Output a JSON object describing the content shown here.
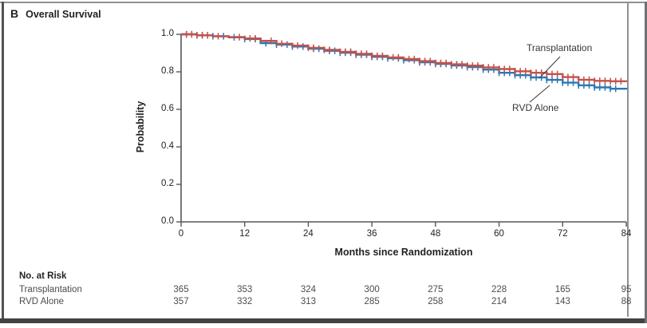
{
  "panel": {
    "letter": "B",
    "title": "Overall Survival"
  },
  "colors": {
    "transplantation": "#c2524b",
    "rvd_alone": "#2878b8",
    "axis": "#55575a",
    "frame_dark": "#414243",
    "frame_light": "#8e9091"
  },
  "chart_data": {
    "type": "line",
    "subtype": "kaplan-meier-step",
    "title": "Overall Survival",
    "xlabel": "Months since Randomization",
    "ylabel": "Probability",
    "xlim": [
      0,
      84
    ],
    "ylim": [
      0.0,
      1.0
    ],
    "grid": false,
    "xticks": [
      0,
      12,
      24,
      36,
      48,
      60,
      72,
      84
    ],
    "ytick_labels": [
      "1.0",
      "0.8",
      "0.6",
      "0.4",
      "0.2",
      "0.0"
    ],
    "ytick_values": [
      1.0,
      0.8,
      0.6,
      0.4,
      0.2,
      0.0
    ],
    "series": [
      {
        "name": "Transplantation",
        "color": "#c2524b",
        "x": [
          0,
          3,
          6,
          9,
          12,
          15,
          18,
          21,
          24,
          27,
          30,
          33,
          36,
          39,
          42,
          45,
          48,
          51,
          54,
          57,
          60,
          63,
          66,
          69,
          72,
          75,
          78,
          81,
          84
        ],
        "y": [
          1.0,
          0.995,
          0.99,
          0.985,
          0.978,
          0.965,
          0.95,
          0.94,
          0.928,
          0.917,
          0.907,
          0.896,
          0.885,
          0.877,
          0.868,
          0.857,
          0.847,
          0.84,
          0.833,
          0.824,
          0.815,
          0.803,
          0.795,
          0.788,
          0.772,
          0.758,
          0.752,
          0.75,
          0.745
        ],
        "censor_months": [
          1,
          2,
          3,
          4,
          5,
          7,
          11,
          13,
          14,
          17,
          19,
          22,
          24,
          25,
          27,
          28,
          30,
          31,
          32,
          33,
          34,
          35,
          36,
          37,
          38,
          40,
          41,
          43,
          44,
          45,
          46,
          47,
          48,
          49,
          50,
          51,
          52,
          53,
          54,
          55,
          56,
          57,
          58,
          59,
          60,
          61,
          62,
          63,
          64,
          65,
          66,
          67,
          68,
          69,
          70,
          71,
          72,
          73,
          74,
          75,
          76,
          77,
          78,
          79,
          80,
          81,
          82,
          83
        ]
      },
      {
        "name": "RVD Alone",
        "color": "#2878b8",
        "x": [
          0,
          3,
          6,
          9,
          12,
          15,
          18,
          21,
          24,
          27,
          30,
          33,
          36,
          39,
          42,
          45,
          48,
          51,
          54,
          57,
          60,
          63,
          66,
          69,
          72,
          75,
          78,
          81,
          84
        ],
        "y": [
          1.0,
          0.995,
          0.99,
          0.984,
          0.975,
          0.953,
          0.945,
          0.935,
          0.923,
          0.912,
          0.902,
          0.891,
          0.88,
          0.872,
          0.862,
          0.851,
          0.842,
          0.834,
          0.825,
          0.812,
          0.795,
          0.782,
          0.77,
          0.757,
          0.742,
          0.728,
          0.717,
          0.71,
          0.705
        ],
        "censor_months": [
          1,
          2,
          3,
          4,
          5,
          6,
          8,
          10,
          12,
          14,
          16,
          18,
          20,
          21,
          23,
          25,
          26,
          28,
          29,
          30,
          31,
          32,
          33,
          34,
          35,
          36,
          37,
          38,
          39,
          41,
          42,
          44,
          45,
          46,
          47,
          48,
          49,
          50,
          51,
          52,
          53,
          54,
          55,
          56,
          57,
          58,
          59,
          60,
          61,
          62,
          63,
          64,
          65,
          66,
          67,
          68,
          69,
          70,
          71,
          72,
          73,
          74,
          75,
          76,
          77,
          78,
          79,
          80,
          81,
          82
        ]
      }
    ],
    "annotations": [
      {
        "label": "Transplantation",
        "points_to": "Transplantation curve"
      },
      {
        "label": "RVD Alone",
        "points_to": "RVD Alone curve"
      }
    ],
    "legend_position": "annotated-on-plot"
  },
  "risk_table": {
    "heading": "No. at Risk",
    "columns_months": [
      0,
      12,
      24,
      36,
      48,
      60,
      72,
      84
    ],
    "rows": [
      {
        "label": "Transplantation",
        "values": [
          "365",
          "353",
          "324",
          "300",
          "275",
          "228",
          "165",
          "95"
        ]
      },
      {
        "label": "RVD Alone",
        "values": [
          "357",
          "332",
          "313",
          "285",
          "258",
          "214",
          "143",
          "88"
        ]
      }
    ]
  }
}
